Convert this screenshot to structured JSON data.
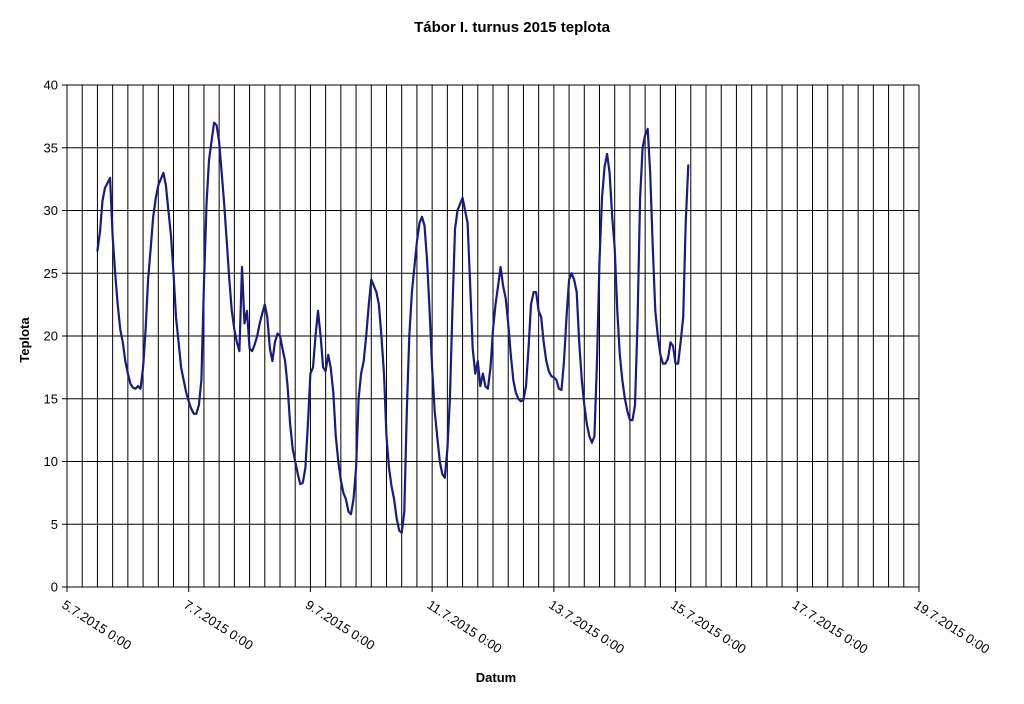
{
  "chart_data": {
    "type": "line",
    "title": "Tábor I. turnus 2015 teplota",
    "xlabel": "Datum",
    "ylabel": "Teplota",
    "xlim": [
      "5.7.2015 0:00",
      "19.7.2015 0:00"
    ],
    "ylim": [
      0,
      40
    ],
    "x_ticks": [
      "5.7.2015 0:00",
      "7.7.2015 0:00",
      "9.7.2015 0:00",
      "11.7.2015 0:00",
      "13.7.2015 0:00",
      "15.7.2015 0:00",
      "17.7.2015 0:00",
      "19.7.2015 0:00"
    ],
    "y_ticks": [
      0,
      5,
      10,
      15,
      20,
      25,
      30,
      35,
      40
    ],
    "vertical_grid": "every 6 hours",
    "grid": true,
    "legend": "none",
    "series": [
      {
        "color": "#1a1a80",
        "points": [
          [
            "5.7.2015 12:00",
            26.8
          ],
          [
            "5.7.2015 13:00",
            28.3
          ],
          [
            "5.7.2015 14:00",
            30.8
          ],
          [
            "5.7.2015 15:00",
            31.8
          ],
          [
            "5.7.2015 16:00",
            32.2
          ],
          [
            "5.7.2015 17:00",
            32.6
          ],
          [
            "5.7.2015 18:00",
            28
          ],
          [
            "5.7.2015 19:00",
            25
          ],
          [
            "5.7.2015 20:00",
            22.5
          ],
          [
            "5.7.2015 21:00",
            20.5
          ],
          [
            "5.7.2015 22:00",
            19.5
          ],
          [
            "5.7.2015 23:00",
            18
          ],
          [
            "6.7.2015 0:00",
            17
          ],
          [
            "6.7.2015 1:00",
            16.2
          ],
          [
            "6.7.2015 2:00",
            15.9
          ],
          [
            "6.7.2015 3:00",
            15.8
          ],
          [
            "6.7.2015 4:00",
            16
          ],
          [
            "6.7.2015 5:00",
            15.8
          ],
          [
            "6.7.2015 6:00",
            17.5
          ],
          [
            "6.7.2015 7:00",
            20.5
          ],
          [
            "6.7.2015 8:00",
            24.5
          ],
          [
            "6.7.2015 9:00",
            27
          ],
          [
            "6.7.2015 10:00",
            29.5
          ],
          [
            "6.7.2015 11:00",
            31
          ],
          [
            "6.7.2015 12:00",
            32
          ],
          [
            "6.7.2015 13:00",
            32.5
          ],
          [
            "6.7.2015 14:00",
            33
          ],
          [
            "6.7.2015 15:00",
            32
          ],
          [
            "6.7.2015 16:00",
            30
          ],
          [
            "6.7.2015 17:00",
            28
          ],
          [
            "6.7.2015 18:00",
            25
          ],
          [
            "6.7.2015 19:00",
            21.5
          ],
          [
            "6.7.2015 20:00",
            19.5
          ],
          [
            "6.7.2015 21:00",
            17.5
          ],
          [
            "6.7.2015 22:00",
            16.5
          ],
          [
            "6.7.2015 23:00",
            15.5
          ],
          [
            "7.7.2015 0:00",
            14.8
          ],
          [
            "7.7.2015 1:00",
            14.2
          ],
          [
            "7.7.2015 2:00",
            13.8
          ],
          [
            "7.7.2015 3:00",
            13.8
          ],
          [
            "7.7.2015 4:00",
            14.5
          ],
          [
            "7.7.2015 5:00",
            16.5
          ],
          [
            "7.7.2015 6:00",
            24
          ],
          [
            "7.7.2015 7:00",
            30.5
          ],
          [
            "7.7.2015 8:00",
            34
          ],
          [
            "7.7.2015 9:00",
            35.5
          ],
          [
            "7.7.2015 10:00",
            37
          ],
          [
            "7.7.2015 11:00",
            36.8
          ],
          [
            "7.7.2015 12:00",
            35.5
          ],
          [
            "7.7.2015 13:00",
            33
          ],
          [
            "7.7.2015 14:00",
            30.5
          ],
          [
            "7.7.2015 15:00",
            27.5
          ],
          [
            "7.7.2015 16:00",
            24.5
          ],
          [
            "7.7.2015 17:00",
            22
          ],
          [
            "7.7.2015 18:00",
            20.5
          ],
          [
            "7.7.2015 19:00",
            19.5
          ],
          [
            "7.7.2015 20:00",
            18.8
          ],
          [
            "7.7.2015 21:00",
            25.5
          ],
          [
            "7.7.2015 22:00",
            21
          ],
          [
            "7.7.2015 23:00",
            22
          ],
          [
            "8.7.2015 0:00",
            19
          ],
          [
            "8.7.2015 1:00",
            18.8
          ],
          [
            "8.7.2015 2:00",
            19.3
          ],
          [
            "8.7.2015 3:00",
            20
          ],
          [
            "8.7.2015 4:00",
            21
          ],
          [
            "8.7.2015 5:00",
            21.8
          ],
          [
            "8.7.2015 6:00",
            22.5
          ],
          [
            "8.7.2015 7:00",
            21.5
          ],
          [
            "8.7.2015 8:00",
            19
          ],
          [
            "8.7.2015 9:00",
            18
          ],
          [
            "8.7.2015 10:00",
            19.5
          ],
          [
            "8.7.2015 11:00",
            20.2
          ],
          [
            "8.7.2015 12:00",
            20
          ],
          [
            "8.7.2015 13:00",
            19
          ],
          [
            "8.7.2015 14:00",
            18
          ],
          [
            "8.7.2015 15:00",
            16
          ],
          [
            "8.7.2015 16:00",
            13
          ],
          [
            "8.7.2015 17:00",
            11
          ],
          [
            "8.7.2015 18:00",
            10
          ],
          [
            "8.7.2015 19:00",
            9
          ],
          [
            "8.7.2015 20:00",
            8.2
          ],
          [
            "8.7.2015 21:00",
            8.3
          ],
          [
            "8.7.2015 22:00",
            9.5
          ],
          [
            "8.7.2015 23:00",
            13
          ],
          [
            "9.7.2015 0:00",
            17
          ],
          [
            "9.7.2015 1:00",
            17.5
          ],
          [
            "9.7.2015 2:00",
            20
          ],
          [
            "9.7.2015 3:00",
            22
          ],
          [
            "9.7.2015 4:00",
            20
          ],
          [
            "9.7.2015 5:00",
            17.5
          ],
          [
            "9.7.2015 6:00",
            17.2
          ],
          [
            "9.7.2015 7:00",
            18.5
          ],
          [
            "9.7.2015 8:00",
            17.5
          ],
          [
            "9.7.2015 9:00",
            15.5
          ],
          [
            "9.7.2015 10:00",
            12
          ],
          [
            "9.7.2015 11:00",
            10
          ],
          [
            "9.7.2015 12:00",
            8.5
          ],
          [
            "9.7.2015 13:00",
            7.5
          ],
          [
            "9.7.2015 14:00",
            7
          ],
          [
            "9.7.2015 15:00",
            6
          ],
          [
            "9.7.2015 16:00",
            5.8
          ],
          [
            "9.7.2015 17:00",
            7
          ],
          [
            "9.7.2015 18:00",
            9.5
          ],
          [
            "9.7.2015 19:00",
            15
          ],
          [
            "9.7.2015 20:00",
            17
          ],
          [
            "9.7.2015 21:00",
            18
          ],
          [
            "9.7.2015 22:00",
            20
          ],
          [
            "9.7.2015 23:00",
            22.5
          ],
          [
            "10.7.2015 0:00",
            24.5
          ],
          [
            "10.7.2015 1:00",
            24
          ],
          [
            "10.7.2015 2:00",
            23.5
          ],
          [
            "10.7.2015 3:00",
            22.5
          ],
          [
            "10.7.2015 4:00",
            20
          ],
          [
            "10.7.2015 5:00",
            17
          ],
          [
            "10.7.2015 6:00",
            12
          ],
          [
            "10.7.2015 7:00",
            9.5
          ],
          [
            "10.7.2015 8:00",
            8
          ],
          [
            "10.7.2015 9:00",
            7
          ],
          [
            "10.7.2015 10:00",
            5.5
          ],
          [
            "10.7.2015 11:00",
            4.5
          ],
          [
            "10.7.2015 12:00",
            4.3
          ],
          [
            "10.7.2015 13:00",
            6
          ],
          [
            "10.7.2015 14:00",
            14
          ],
          [
            "10.7.2015 15:00",
            20
          ],
          [
            "10.7.2015 16:00",
            23.5
          ],
          [
            "10.7.2015 17:00",
            25.5
          ],
          [
            "10.7.2015 18:00",
            27.5
          ],
          [
            "10.7.2015 19:00",
            29
          ],
          [
            "10.7.2015 20:00",
            29.5
          ],
          [
            "10.7.2015 21:00",
            28.8
          ],
          [
            "10.7.2015 22:00",
            26
          ],
          [
            "10.7.2015 23:00",
            22
          ],
          [
            "11.7.2015 0:00",
            17.5
          ],
          [
            "11.7.2015 1:00",
            14
          ],
          [
            "11.7.2015 2:00",
            12
          ],
          [
            "11.7.2015 3:00",
            10
          ],
          [
            "11.7.2015 4:00",
            9
          ],
          [
            "11.7.2015 5:00",
            8.7
          ],
          [
            "11.7.2015 6:00",
            11
          ],
          [
            "11.7.2015 7:00",
            15
          ],
          [
            "11.7.2015 8:00",
            22
          ],
          [
            "11.7.2015 9:00",
            28.5
          ],
          [
            "11.7.2015 10:00",
            30
          ],
          [
            "11.7.2015 11:00",
            30.5
          ],
          [
            "11.7.2015 12:00",
            31
          ],
          [
            "11.7.2015 13:00",
            30
          ],
          [
            "11.7.2015 14:00",
            29
          ],
          [
            "11.7.2015 15:00",
            24
          ],
          [
            "11.7.2015 16:00",
            19
          ],
          [
            "11.7.2015 17:00",
            17
          ],
          [
            "11.7.2015 18:00",
            18
          ],
          [
            "11.7.2015 19:00",
            16
          ],
          [
            "11.7.2015 20:00",
            17
          ],
          [
            "11.7.2015 21:00",
            16
          ],
          [
            "11.7.2015 22:00",
            15.8
          ],
          [
            "11.7.2015 23:00",
            17.5
          ],
          [
            "12.7.2015 0:00",
            20.5
          ],
          [
            "12.7.2015 1:00",
            22.5
          ],
          [
            "12.7.2015 2:00",
            24
          ],
          [
            "12.7.2015 3:00",
            25.5
          ],
          [
            "12.7.2015 4:00",
            24
          ],
          [
            "12.7.2015 5:00",
            23
          ],
          [
            "12.7.2015 6:00",
            21
          ],
          [
            "12.7.2015 7:00",
            18.5
          ],
          [
            "12.7.2015 8:00",
            16.5
          ],
          [
            "12.7.2015 9:00",
            15.5
          ],
          [
            "12.7.2015 10:00",
            15
          ],
          [
            "12.7.2015 11:00",
            14.8
          ],
          [
            "12.7.2015 12:00",
            14.9
          ],
          [
            "12.7.2015 13:00",
            16
          ],
          [
            "12.7.2015 14:00",
            19
          ],
          [
            "12.7.2015 15:00",
            22.5
          ],
          [
            "12.7.2015 16:00",
            23.5
          ],
          [
            "12.7.2015 17:00",
            23.5
          ],
          [
            "12.7.2015 18:00",
            22
          ],
          [
            "12.7.2015 19:00",
            21.5
          ],
          [
            "12.7.2015 20:00",
            19.5
          ],
          [
            "12.7.2015 21:00",
            18
          ],
          [
            "12.7.2015 22:00",
            17.2
          ],
          [
            "12.7.2015 23:00",
            16.8
          ],
          [
            "13.7.2015 0:00",
            16.7
          ],
          [
            "13.7.2015 1:00",
            16.5
          ],
          [
            "13.7.2015 2:00",
            15.8
          ],
          [
            "13.7.2015 3:00",
            15.7
          ],
          [
            "13.7.2015 4:00",
            18
          ],
          [
            "13.7.2015 5:00",
            21.5
          ],
          [
            "13.7.2015 6:00",
            24.5
          ],
          [
            "13.7.2015 7:00",
            25
          ],
          [
            "13.7.2015 8:00",
            24.5
          ],
          [
            "13.7.2015 9:00",
            23.5
          ],
          [
            "13.7.2015 10:00",
            19.5
          ],
          [
            "13.7.2015 11:00",
            16.5
          ],
          [
            "13.7.2015 12:00",
            14.5
          ],
          [
            "13.7.2015 13:00",
            13
          ],
          [
            "13.7.2015 14:00",
            12
          ],
          [
            "13.7.2015 15:00",
            11.5
          ],
          [
            "13.7.2015 16:00",
            12
          ],
          [
            "13.7.2015 17:00",
            18
          ],
          [
            "13.7.2015 18:00",
            26
          ],
          [
            "13.7.2015 19:00",
            31
          ],
          [
            "13.7.2015 20:00",
            33.5
          ],
          [
            "13.7.2015 21:00",
            34.5
          ],
          [
            "13.7.2015 22:00",
            33
          ],
          [
            "13.7.2015 23:00",
            29.5
          ],
          [
            "14.7.2015 0:00",
            27
          ],
          [
            "14.7.2015 1:00",
            22
          ],
          [
            "14.7.2015 2:00",
            18.5
          ],
          [
            "14.7.2015 3:00",
            16.5
          ],
          [
            "14.7.2015 4:00",
            15
          ],
          [
            "14.7.2015 5:00",
            14
          ],
          [
            "14.7.2015 6:00",
            13.3
          ],
          [
            "14.7.2015 7:00",
            13.3
          ],
          [
            "14.7.2015 8:00",
            14.5
          ],
          [
            "14.7.2015 9:00",
            21
          ],
          [
            "14.7.2015 10:00",
            31
          ],
          [
            "14.7.2015 11:00",
            35
          ],
          [
            "14.7.2015 12:00",
            36
          ],
          [
            "14.7.2015 13:00",
            36.5
          ],
          [
            "14.7.2015 14:00",
            33
          ],
          [
            "14.7.2015 15:00",
            27
          ],
          [
            "14.7.2015 16:00",
            22
          ],
          [
            "14.7.2015 17:00",
            20
          ],
          [
            "14.7.2015 18:00",
            18.5
          ],
          [
            "14.7.2015 19:00",
            17.8
          ],
          [
            "14.7.2015 20:00",
            17.8
          ],
          [
            "14.7.2015 21:00",
            18.2
          ],
          [
            "14.7.2015 22:00",
            19.5
          ],
          [
            "14.7.2015 23:00",
            19.2
          ],
          [
            "15.7.2015 0:00",
            17.8
          ],
          [
            "15.7.2015 1:00",
            17.8
          ],
          [
            "15.7.2015 2:00",
            19.5
          ],
          [
            "15.7.2015 3:00",
            21.5
          ],
          [
            "15.7.2015 4:00",
            29
          ],
          [
            "15.7.2015 5:00",
            33.6
          ]
        ]
      }
    ]
  }
}
